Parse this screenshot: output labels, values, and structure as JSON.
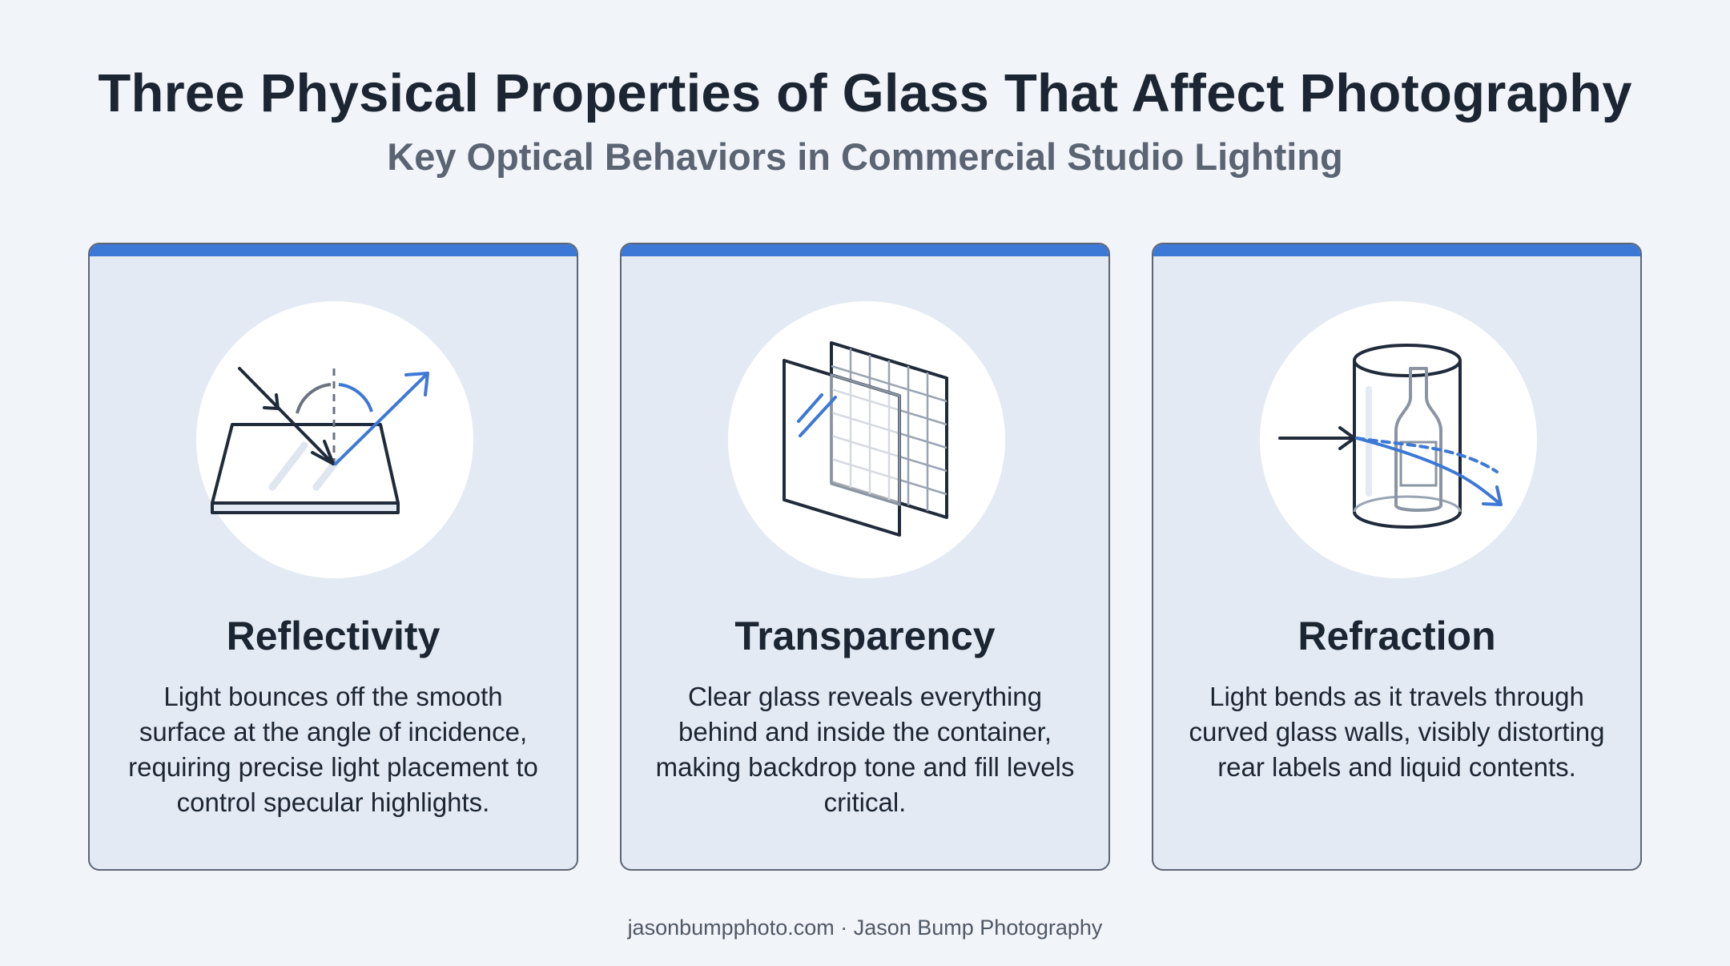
{
  "header": {
    "title": "Three Physical Properties of Glass That Affect Photography",
    "subtitle": "Key Optical Behaviors in Commercial Studio Lighting"
  },
  "cards": [
    {
      "icon": "reflection-icon",
      "title": "Reflectivity",
      "text": "Light bounces off the smooth surface at the angle of incidence, requiring precise light placement to control specular highlights."
    },
    {
      "icon": "transparency-icon",
      "title": "Transparency",
      "text": "Clear glass reveals everything behind and inside the container, making backdrop tone and fill levels critical."
    },
    {
      "icon": "refraction-icon",
      "title": "Refraction",
      "text": "Light bends as it travels through curved glass walls, visibly distorting rear labels and liquid contents."
    }
  ],
  "footer": {
    "text": "jasonbumpphoto.com · Jason Bump Photography"
  },
  "colors": {
    "background": "#f1f4f8",
    "card_fill": "#e3eaf4",
    "card_border": "#5c6674",
    "accent": "#3c78d6",
    "text_dark": "#1c2532",
    "text_muted": "#5b6472"
  }
}
